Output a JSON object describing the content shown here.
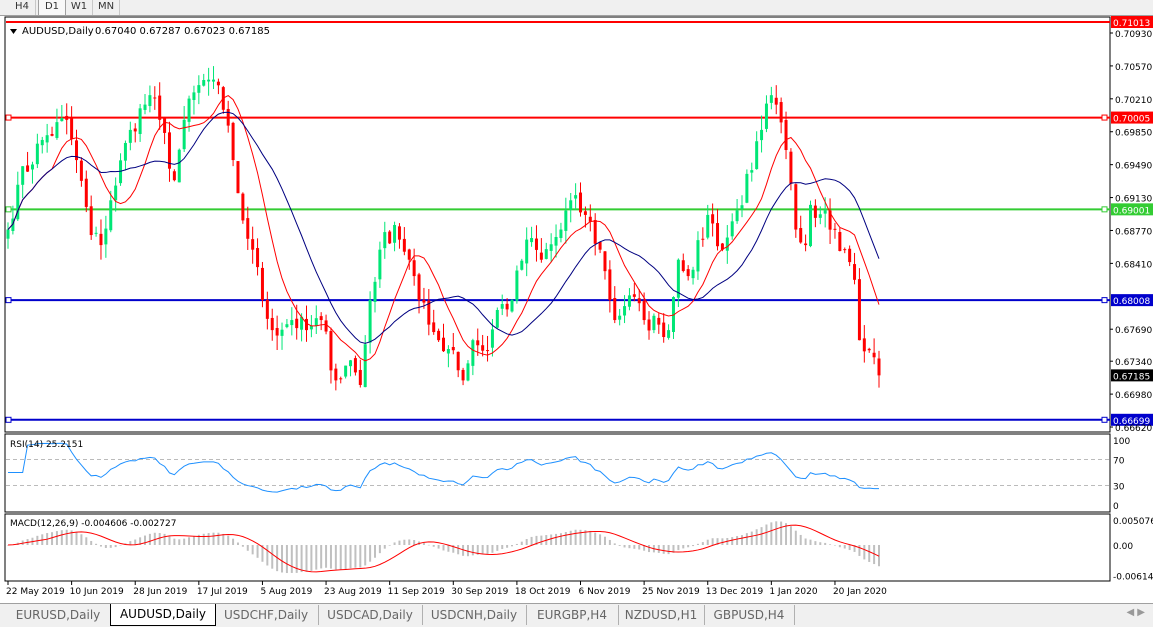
{
  "timeframes": [
    "H4",
    "D1",
    "W1",
    "MN"
  ],
  "active_timeframe": "D1",
  "chart": {
    "symbol_title": "AUDUSD,Daily",
    "ohlc_text": "0.67040 0.67287 0.67023 0.67185",
    "current_price": "0.67185",
    "price_axis": [
      "0.70930",
      "0.70570",
      "0.70210",
      "0.69850",
      "0.69490",
      "0.69130",
      "0.68770",
      "0.68410",
      "0.67690",
      "0.67340",
      "0.66980",
      "0.66620"
    ],
    "hlines": [
      {
        "price": 0.71013,
        "label": "0.71013",
        "color": "#ff0000"
      },
      {
        "price": 0.70005,
        "label": "0.70005",
        "color": "#ff0000"
      },
      {
        "price": 0.69001,
        "label": "0.69001",
        "color": "#33cc33"
      },
      {
        "price": 0.68008,
        "label": "0.68008",
        "color": "#0000cc"
      },
      {
        "price": 0.66699,
        "label": "0.66699",
        "color": "#0000cc"
      }
    ],
    "colors": {
      "bull": "#00e676",
      "bear": "#ff0000",
      "ma_fast": "#ff0000",
      "ma_slow": "#000080"
    },
    "close_path": [
      [
        0,
        0.6878
      ],
      [
        2,
        0.6927
      ],
      [
        7,
        0.6976
      ],
      [
        12,
        0.6998
      ],
      [
        14,
        0.6954
      ],
      [
        17,
        0.6872
      ],
      [
        19,
        0.6861
      ],
      [
        21,
        0.691
      ],
      [
        25,
        0.6987
      ],
      [
        29,
        0.7025
      ],
      [
        31,
        0.6998
      ],
      [
        34,
        0.6932
      ],
      [
        36,
        0.6998
      ],
      [
        39,
        0.7036
      ],
      [
        42,
        0.7042
      ],
      [
        44,
        0.7009
      ],
      [
        46,
        0.6954
      ],
      [
        48,
        0.6888
      ],
      [
        50,
        0.6856
      ],
      [
        52,
        0.6801
      ],
      [
        54,
        0.6768
      ],
      [
        58,
        0.6779
      ],
      [
        61,
        0.6768
      ],
      [
        64,
        0.6779
      ],
      [
        67,
        0.6713
      ],
      [
        70,
        0.6735
      ],
      [
        72,
        0.6708
      ],
      [
        74,
        0.6801
      ],
      [
        76,
        0.6856
      ],
      [
        79,
        0.6883
      ],
      [
        82,
        0.6845
      ],
      [
        84,
        0.6801
      ],
      [
        86,
        0.6774
      ],
      [
        88,
        0.6757
      ],
      [
        91,
        0.6746
      ],
      [
        93,
        0.6713
      ],
      [
        95,
        0.6757
      ],
      [
        98,
        0.6746
      ],
      [
        100,
        0.679
      ],
      [
        103,
        0.6801
      ],
      [
        106,
        0.6867
      ],
      [
        109,
        0.6845
      ],
      [
        113,
        0.6878
      ],
      [
        115,
        0.691
      ],
      [
        118,
        0.6894
      ],
      [
        121,
        0.6856
      ],
      [
        124,
        0.6779
      ],
      [
        127,
        0.6806
      ],
      [
        130,
        0.6779
      ],
      [
        133,
        0.6774
      ],
      [
        135,
        0.6768
      ],
      [
        137,
        0.6845
      ],
      [
        140,
        0.6834
      ],
      [
        143,
        0.6894
      ],
      [
        146,
        0.6856
      ],
      [
        149,
        0.6899
      ],
      [
        152,
        0.6943
      ],
      [
        154,
        0.6987
      ],
      [
        156,
        0.7025
      ],
      [
        159,
        0.6965
      ],
      [
        161,
        0.6878
      ],
      [
        163,
        0.6861
      ],
      [
        164,
        0.6905
      ],
      [
        167,
        0.6899
      ],
      [
        169,
        0.6878
      ],
      [
        171,
        0.6856
      ],
      [
        173,
        0.6823
      ],
      [
        174,
        0.6757
      ],
      [
        176,
        0.6746
      ],
      [
        178,
        0.67185
      ]
    ],
    "date_axis": [
      "22 May 2019",
      "10 Jun 2019",
      "28 Jun 2019",
      "17 Jul 2019",
      "5 Aug 2019",
      "23 Aug 2019",
      "11 Sep 2019",
      "30 Sep 2019",
      "18 Oct 2019",
      "6 Nov 2019",
      "25 Nov 2019",
      "13 Dec 2019",
      "1 Jan 2020",
      "20 Jan 2020"
    ]
  },
  "rsi": {
    "title": "RSI(14) 25.2151",
    "levels": [
      "100",
      "70",
      "30",
      "0"
    ],
    "color": "#1e90ff"
  },
  "macd": {
    "title": "MACD(12,26,9) -0.004606 -0.002727",
    "levels": [
      "0.005076",
      "0.00",
      "-0.006148"
    ],
    "hist_color": "#c0c0c0",
    "signal_color": "#ff0000"
  },
  "tabs": [
    "EURUSD,Daily",
    "AUDUSD,Daily",
    "USDCHF,Daily",
    "USDCAD,Daily",
    "USDCNH,Daily",
    "EURGBP,H4",
    "NZDUSD,H1",
    "GBPUSD,H4"
  ],
  "active_tab": "AUDUSD,Daily"
}
